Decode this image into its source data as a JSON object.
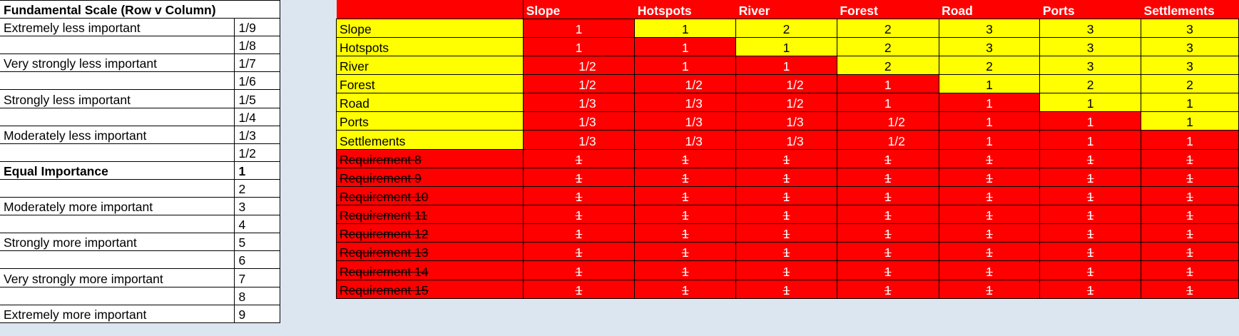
{
  "scale": {
    "title": "Fundamental Scale (Row v Column)",
    "rows": [
      {
        "label": "Extremely less important",
        "value": "1/9",
        "bold": false
      },
      {
        "label": "",
        "value": "1/8",
        "bold": false
      },
      {
        "label": "Very strongly less important",
        "value": "1/7",
        "bold": false
      },
      {
        "label": "",
        "value": "1/6",
        "bold": false
      },
      {
        "label": "Strongly less important",
        "value": "1/5",
        "bold": false
      },
      {
        "label": "",
        "value": "1/4",
        "bold": false
      },
      {
        "label": "Moderately less important",
        "value": "1/3",
        "bold": false
      },
      {
        "label": "",
        "value": "1/2",
        "bold": false
      },
      {
        "label": "Equal Importance",
        "value": "1",
        "bold": true
      },
      {
        "label": "",
        "value": "2",
        "bold": false
      },
      {
        "label": "Moderately more important",
        "value": "3",
        "bold": false
      },
      {
        "label": "",
        "value": "4",
        "bold": false
      },
      {
        "label": "Strongly more important",
        "value": "5",
        "bold": false
      },
      {
        "label": "",
        "value": "6",
        "bold": false
      },
      {
        "label": "Very strongly more important",
        "value": "7",
        "bold": false
      },
      {
        "label": "",
        "value": "8",
        "bold": false
      },
      {
        "label": "Extremely more important",
        "value": "9",
        "bold": false
      }
    ]
  },
  "matrix": {
    "columns": [
      "Slope",
      "Hotspots",
      "River",
      "Forest",
      "Road",
      "Ports",
      "Settlements"
    ],
    "rows": [
      {
        "label": "Slope",
        "struck": false,
        "values": [
          "1",
          "1",
          "2",
          "2",
          "3",
          "3",
          "3"
        ],
        "colors": [
          "red",
          "yellow",
          "yellow",
          "yellow",
          "yellow",
          "yellow",
          "yellow"
        ]
      },
      {
        "label": "Hotspots",
        "struck": false,
        "values": [
          "1",
          "1",
          "1",
          "2",
          "3",
          "3",
          "3"
        ],
        "colors": [
          "red",
          "red",
          "yellow",
          "yellow",
          "yellow",
          "yellow",
          "yellow"
        ]
      },
      {
        "label": "River",
        "struck": false,
        "values": [
          "1/2",
          "1",
          "1",
          "2",
          "2",
          "3",
          "3"
        ],
        "colors": [
          "red",
          "red",
          "red",
          "yellow",
          "yellow",
          "yellow",
          "yellow"
        ]
      },
      {
        "label": "Forest",
        "struck": false,
        "values": [
          "1/2",
          "1/2",
          "1/2",
          "1",
          "1",
          "2",
          "2"
        ],
        "colors": [
          "red",
          "red",
          "red",
          "red",
          "yellow",
          "yellow",
          "yellow"
        ]
      },
      {
        "label": "Road",
        "struck": false,
        "values": [
          "1/3",
          "1/3",
          "1/2",
          "1",
          "1",
          "1",
          "1"
        ],
        "colors": [
          "red",
          "red",
          "red",
          "red",
          "red",
          "yellow",
          "yellow"
        ]
      },
      {
        "label": "Ports",
        "struck": false,
        "values": [
          "1/3",
          "1/3",
          "1/3",
          "1/2",
          "1",
          "1",
          "1"
        ],
        "colors": [
          "red",
          "red",
          "red",
          "red",
          "red",
          "red",
          "yellow"
        ]
      },
      {
        "label": "Settlements",
        "struck": false,
        "values": [
          "1/3",
          "1/3",
          "1/3",
          "1/2",
          "1",
          "1",
          "1"
        ],
        "colors": [
          "red",
          "red",
          "red",
          "red",
          "red",
          "red",
          "red"
        ]
      },
      {
        "label": "Requirement 8",
        "struck": true,
        "values": [
          "1",
          "1",
          "1",
          "1",
          "1",
          "1",
          "1"
        ],
        "colors": [
          "red",
          "red",
          "red",
          "red",
          "red",
          "red",
          "red"
        ]
      },
      {
        "label": "Requirement 9",
        "struck": true,
        "values": [
          "1",
          "1",
          "1",
          "1",
          "1",
          "1",
          "1"
        ],
        "colors": [
          "red",
          "red",
          "red",
          "red",
          "red",
          "red",
          "red"
        ]
      },
      {
        "label": "Requirement 10",
        "struck": true,
        "values": [
          "1",
          "1",
          "1",
          "1",
          "1",
          "1",
          "1"
        ],
        "colors": [
          "red",
          "red",
          "red",
          "red",
          "red",
          "red",
          "red"
        ]
      },
      {
        "label": "Requirement 11",
        "struck": true,
        "values": [
          "1",
          "1",
          "1",
          "1",
          "1",
          "1",
          "1"
        ],
        "colors": [
          "red",
          "red",
          "red",
          "red",
          "red",
          "red",
          "red"
        ]
      },
      {
        "label": "Requirement 12",
        "struck": true,
        "values": [
          "1",
          "1",
          "1",
          "1",
          "1",
          "1",
          "1"
        ],
        "colors": [
          "red",
          "red",
          "red",
          "red",
          "red",
          "red",
          "red"
        ]
      },
      {
        "label": "Requirement 13",
        "struck": true,
        "values": [
          "1",
          "1",
          "1",
          "1",
          "1",
          "1",
          "1"
        ],
        "colors": [
          "red",
          "red",
          "red",
          "red",
          "red",
          "red",
          "red"
        ]
      },
      {
        "label": "Requirement 14",
        "struck": true,
        "values": [
          "1",
          "1",
          "1",
          "1",
          "1",
          "1",
          "1"
        ],
        "colors": [
          "red",
          "red",
          "red",
          "red",
          "red",
          "red",
          "red"
        ]
      },
      {
        "label": "Requirement 15",
        "struck": true,
        "values": [
          "1",
          "1",
          "1",
          "1",
          "1",
          "1",
          "1"
        ],
        "colors": [
          "red",
          "red",
          "red",
          "red",
          "red",
          "red",
          "red"
        ]
      }
    ]
  },
  "colors": {
    "red": "#ff0000",
    "yellow": "#ffff00",
    "background": "#dce6f1"
  }
}
